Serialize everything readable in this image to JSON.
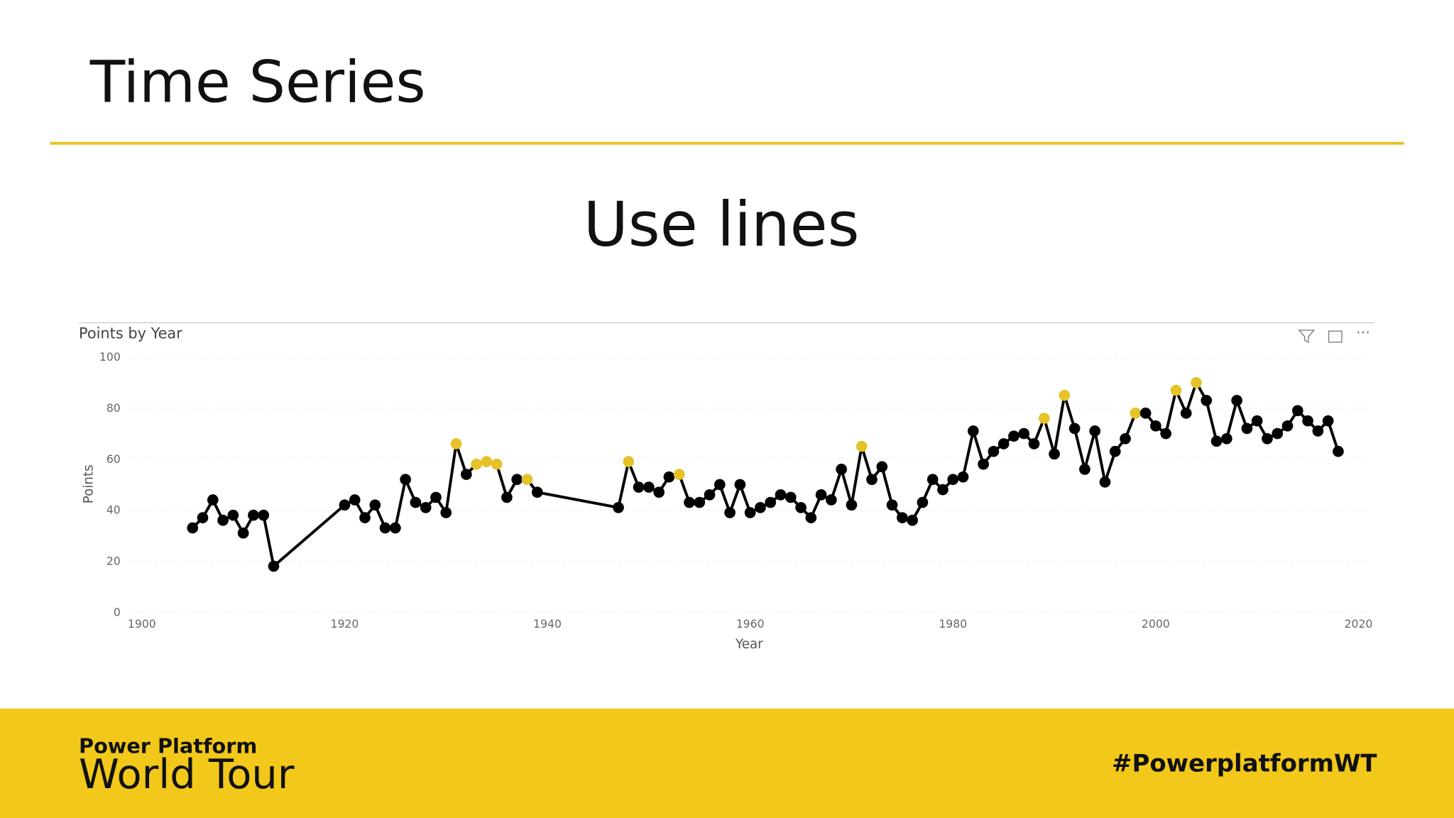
{
  "slide": {
    "title": "Time Series",
    "subtitle": "Use lines",
    "footer_brand_top": "Power Platform",
    "footer_brand_bottom": "World Tour",
    "footer_hashtag": "#PowerplatformWT"
  },
  "chart_data": {
    "type": "line",
    "title": "Points by Year",
    "x_label": "Year",
    "y_label": "Points",
    "x": [
      1905,
      1906,
      1907,
      1908,
      1909,
      1910,
      1911,
      1912,
      1913,
      1920,
      1921,
      1922,
      1923,
      1924,
      1925,
      1926,
      1927,
      1928,
      1929,
      1930,
      1931,
      1932,
      1933,
      1934,
      1935,
      1936,
      1937,
      1938,
      1939,
      1947,
      1948,
      1949,
      1950,
      1951,
      1952,
      1953,
      1954,
      1955,
      1956,
      1957,
      1958,
      1959,
      1960,
      1961,
      1962,
      1963,
      1964,
      1965,
      1966,
      1967,
      1968,
      1969,
      1970,
      1971,
      1972,
      1973,
      1974,
      1975,
      1976,
      1977,
      1978,
      1979,
      1980,
      1981,
      1982,
      1983,
      1984,
      1985,
      1986,
      1987,
      1988,
      1989,
      1990,
      1991,
      1992,
      1993,
      1994,
      1995,
      1996,
      1997,
      1998,
      1999,
      2000,
      2001,
      2002,
      2003,
      2004,
      2005,
      2006,
      2007,
      2008,
      2009,
      2010,
      2011,
      2012,
      2013,
      2014,
      2015,
      2016,
      2017,
      2018
    ],
    "series": [
      {
        "name": "Points",
        "color": "#000000",
        "values": [
          33,
          37,
          44,
          36,
          38,
          31,
          38,
          38,
          18,
          42,
          44,
          37,
          42,
          33,
          33,
          52,
          43,
          41,
          45,
          39,
          66,
          54,
          58,
          59,
          58,
          45,
          52,
          52,
          47,
          41,
          59,
          49,
          49,
          47,
          53,
          54,
          43,
          43,
          46,
          50,
          39,
          50,
          39,
          41,
          43,
          46,
          45,
          41,
          37,
          46,
          44,
          56,
          42,
          65,
          52,
          57,
          42,
          37,
          36,
          43,
          52,
          48,
          52,
          53,
          71,
          58,
          63,
          66,
          69,
          70,
          66,
          76,
          62,
          85,
          72,
          56,
          71,
          51,
          63,
          68,
          78,
          78,
          73,
          70,
          87,
          78,
          90,
          83,
          67,
          68,
          83,
          72,
          75,
          68,
          70,
          73,
          79,
          75,
          71,
          75,
          63
        ],
        "point_colors": [
          "#000",
          "#000",
          "#000",
          "#000",
          "#000",
          "#000",
          "#000",
          "#000",
          "#000",
          "#000",
          "#000",
          "#000",
          "#000",
          "#000",
          "#000",
          "#000",
          "#000",
          "#000",
          "#000",
          "#000",
          "#e6c229",
          "#000",
          "#e6c229",
          "#e6c229",
          "#e6c229",
          "#000",
          "#000",
          "#e6c229",
          "#000",
          "#000",
          "#e6c229",
          "#000",
          "#000",
          "#000",
          "#000",
          "#e6c229",
          "#000",
          "#000",
          "#000",
          "#000",
          "#000",
          "#000",
          "#000",
          "#000",
          "#000",
          "#000",
          "#000",
          "#000",
          "#000",
          "#000",
          "#000",
          "#000",
          "#000",
          "#e6c229",
          "#000",
          "#000",
          "#000",
          "#000",
          "#000",
          "#000",
          "#000",
          "#000",
          "#000",
          "#000",
          "#000",
          "#000",
          "#000",
          "#000",
          "#000",
          "#000",
          "#000",
          "#e6c229",
          "#000",
          "#e6c229",
          "#000",
          "#000",
          "#000",
          "#000",
          "#000",
          "#000",
          "#e6c229",
          "#000",
          "#000",
          "#000",
          "#e6c229",
          "#000",
          "#e6c229",
          "#000",
          "#000",
          "#000",
          "#000",
          "#000",
          "#000",
          "#000",
          "#000",
          "#000",
          "#000",
          "#000",
          "#000",
          "#000",
          "#000"
        ]
      }
    ],
    "xlim": [
      1900,
      2020
    ],
    "xticks": [
      1900,
      1920,
      1940,
      1960,
      1980,
      2000,
      2020
    ],
    "ylim": [
      0,
      100
    ],
    "yticks": [
      0,
      20,
      40,
      60,
      80,
      100
    ],
    "grid": true
  }
}
